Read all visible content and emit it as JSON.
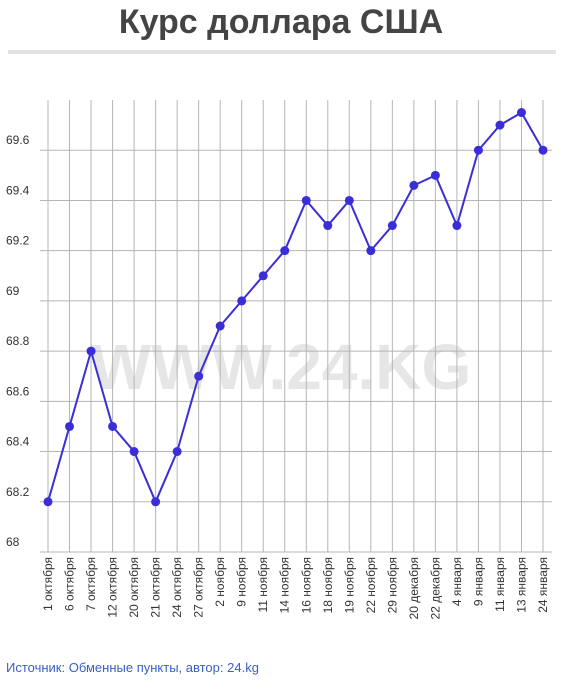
{
  "chart_data": {
    "type": "line",
    "title": "Курс доллара США",
    "watermark": "WWW.24.KG",
    "source": "Источник: Обменные пункты, автор: 24.kg",
    "categories": [
      "1 октября",
      "6 октября",
      "7 октября",
      "12 октября",
      "20 октября",
      "21 октября",
      "24 октября",
      "27 октября",
      "2 ноября",
      "9 ноября",
      "11 ноября",
      "14 ноября",
      "16 ноября",
      "18 ноября",
      "19 ноября",
      "22 ноября",
      "29 ноября",
      "20 декабря",
      "22 декабря",
      "4 января",
      "9 января",
      "11 января",
      "13 января",
      "24 января"
    ],
    "values": [
      68.2,
      68.5,
      68.8,
      68.5,
      68.4,
      68.2,
      68.4,
      68.7,
      68.9,
      69.0,
      69.1,
      69.2,
      69.4,
      69.3,
      69.4,
      69.2,
      69.3,
      69.46,
      69.5,
      69.3,
      69.6,
      69.7,
      69.75,
      69.6
    ],
    "color": "#3a2fd6",
    "ylim": [
      68,
      69.8
    ],
    "yticks": [
      68,
      68.2,
      68.4,
      68.6,
      68.8,
      69,
      69.2,
      69.4,
      69.6
    ],
    "grid": true
  }
}
